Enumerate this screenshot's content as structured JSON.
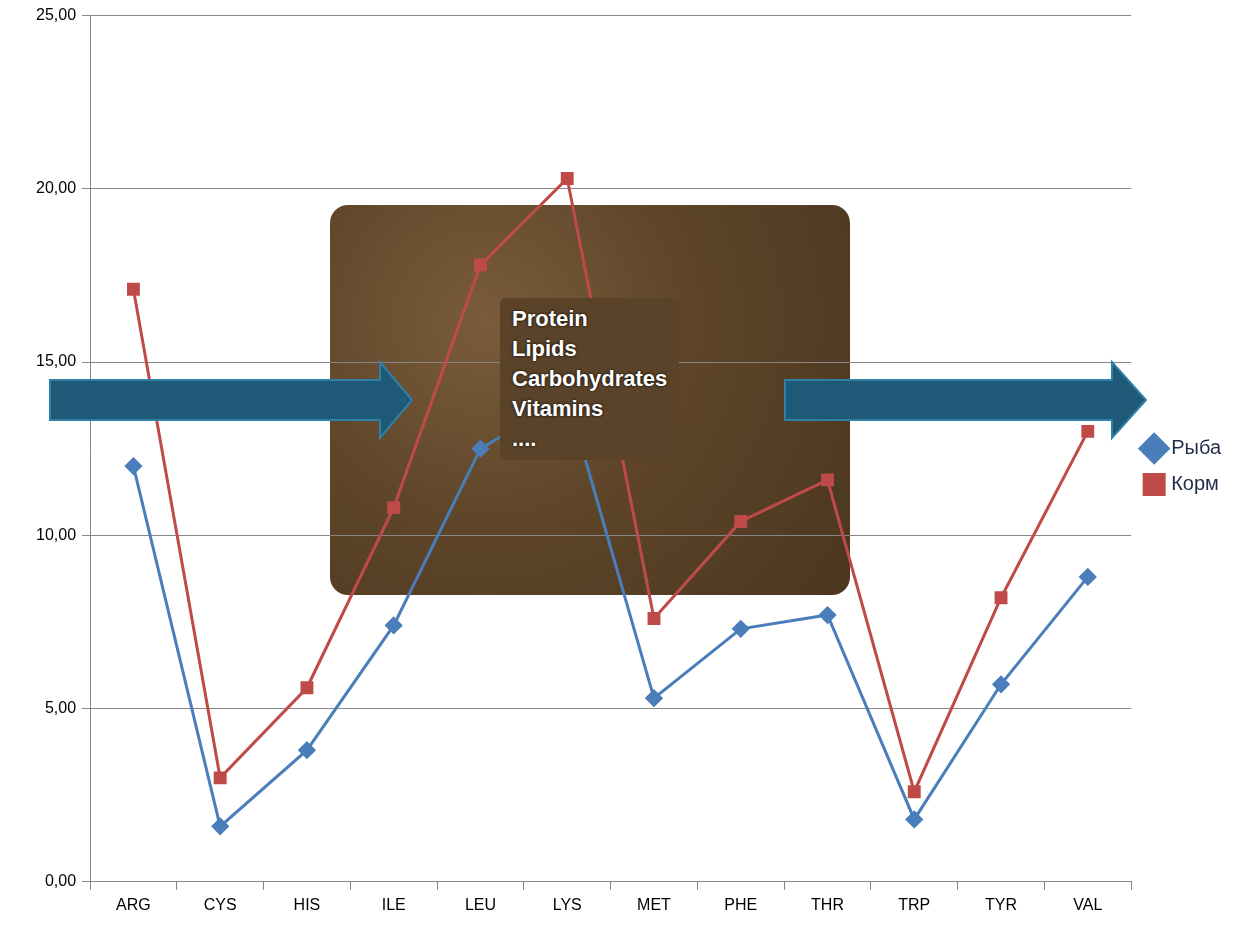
{
  "chart_data": {
    "type": "line",
    "categories": [
      "ARG",
      "CYS",
      "HIS",
      "ILE",
      "LEU",
      "LYS",
      "MET",
      "PHE",
      "THR",
      "TRP",
      "TYR",
      "VAL"
    ],
    "series": [
      {
        "name": "Рыба",
        "color": "#4a7ebb",
        "marker": "diamond",
        "line_style": "solid",
        "values": [
          12.0,
          1.6,
          3.8,
          7.4,
          12.5,
          14.0,
          5.3,
          7.3,
          7.7,
          1.8,
          5.7,
          8.8
        ]
      },
      {
        "name": "Корм",
        "color": "#be4b48",
        "marker": "square",
        "line_style": "solid",
        "values": [
          17.1,
          3.0,
          5.6,
          10.8,
          17.8,
          20.3,
          7.6,
          10.4,
          11.6,
          2.6,
          8.2,
          13.0
        ]
      }
    ],
    "ylim": [
      0,
      25
    ],
    "yticks": [
      {
        "value": 0,
        "label": "0,00"
      },
      {
        "value": 5,
        "label": "5,00"
      },
      {
        "value": 10,
        "label": "10,00"
      },
      {
        "value": 15,
        "label": "15,00"
      },
      {
        "value": 20,
        "label": "20,00"
      },
      {
        "value": 25,
        "label": "25,00"
      }
    ],
    "grid": true,
    "legend": "right",
    "annotations": [
      "Protein",
      "Lipids",
      "Carbohydrates",
      "Vitamins",
      "...."
    ]
  }
}
